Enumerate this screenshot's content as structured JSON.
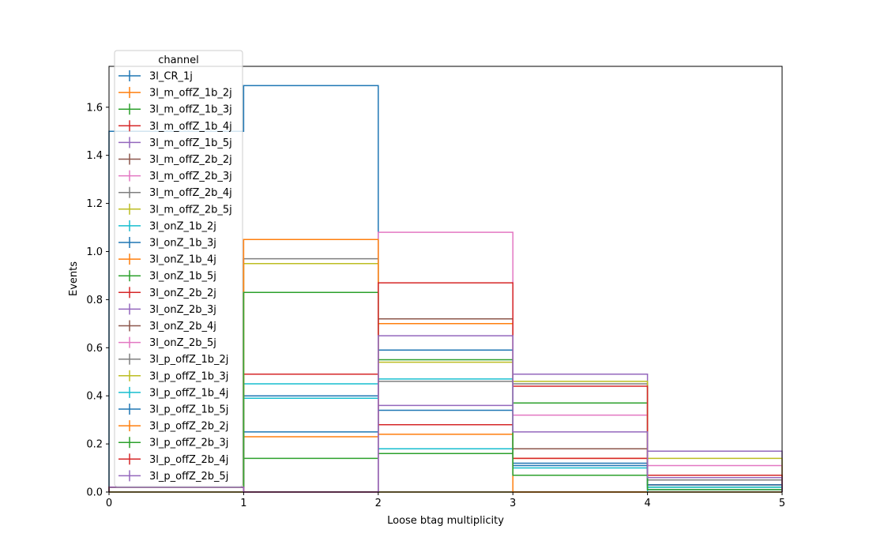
{
  "chart_data": {
    "type": "histogram",
    "xlabel": "Loose btag multiplicity",
    "ylabel": "Events",
    "xlim": [
      0,
      5
    ],
    "ylim": [
      0,
      1.77
    ],
    "bin_edges": [
      0,
      1,
      2,
      3,
      4,
      5
    ],
    "x_ticks": [
      0,
      1,
      2,
      3,
      4,
      5
    ],
    "y_ticks": [
      0.0,
      0.2,
      0.4,
      0.6,
      0.8,
      1.0,
      1.2,
      1.4,
      1.6
    ],
    "x_tick_labels": [
      "0",
      "1",
      "2",
      "3",
      "4",
      "5"
    ],
    "y_tick_labels": [
      "0.0",
      "0.2",
      "0.4",
      "0.6",
      "0.8",
      "1.0",
      "1.2",
      "1.4",
      "1.6"
    ],
    "grid": false,
    "legend": {
      "title": "channel",
      "placement": "upper-left"
    },
    "series": [
      {
        "name": "3l_CR_1j",
        "color": "#1f77b4",
        "values": [
          1.5,
          1.69,
          0.0,
          0.0,
          0.0
        ]
      },
      {
        "name": "3l_m_offZ_1b_2j",
        "color": "#ff7f0e",
        "values": [
          0.0,
          0.0,
          0.0,
          0.0,
          0.0
        ]
      },
      {
        "name": "3l_m_offZ_1b_3j",
        "color": "#2ca02c",
        "values": [
          0.0,
          0.0,
          0.0,
          0.0,
          0.0
        ]
      },
      {
        "name": "3l_m_offZ_1b_4j",
        "color": "#d62728",
        "values": [
          0.0,
          0.0,
          0.0,
          0.0,
          0.0
        ]
      },
      {
        "name": "3l_m_offZ_1b_5j",
        "color": "#9467bd",
        "values": [
          0.0,
          0.0,
          0.0,
          0.0,
          0.0
        ]
      },
      {
        "name": "3l_m_offZ_2b_2j",
        "color": "#8c564b",
        "values": [
          0.0,
          0.0,
          0.0,
          0.0,
          0.0
        ]
      },
      {
        "name": "3l_m_offZ_2b_3j",
        "color": "#e377c2",
        "values": [
          0.0,
          0.0,
          0.0,
          0.0,
          0.0
        ]
      },
      {
        "name": "3l_m_offZ_2b_4j",
        "color": "#7f7f7f",
        "values": [
          0.0,
          0.0,
          0.0,
          0.0,
          0.0
        ]
      },
      {
        "name": "3l_m_offZ_2b_5j",
        "color": "#bcbd22",
        "values": [
          0.0,
          0.0,
          0.0,
          0.0,
          0.0
        ]
      },
      {
        "name": "3l_onZ_1b_2j",
        "color": "#17becf",
        "values": [
          0.02,
          0.45,
          0.18,
          0.07,
          0.0
        ]
      },
      {
        "name": "3l_onZ_1b_3j",
        "color": "#1f77b4",
        "values": [
          0.02,
          0.4,
          0.59,
          0.12,
          0.01
        ]
      },
      {
        "name": "3l_onZ_1b_4j",
        "color": "#ff7f0e",
        "values": [
          0.02,
          0.23,
          0.7,
          0.14,
          0.03
        ]
      },
      {
        "name": "3l_onZ_1b_5j",
        "color": "#2ca02c",
        "values": [
          0.02,
          0.14,
          0.16,
          0.37,
          0.02
        ]
      },
      {
        "name": "3l_onZ_2b_2j",
        "color": "#d62728",
        "values": [
          0.02,
          0.49,
          0.28,
          0.14,
          0.03
        ]
      },
      {
        "name": "3l_onZ_2b_3j",
        "color": "#9467bd",
        "values": [
          0.02,
          0.0,
          0.36,
          0.49,
          0.17
        ]
      },
      {
        "name": "3l_onZ_2b_4j",
        "color": "#8c564b",
        "values": [
          0.02,
          0.0,
          0.72,
          0.18,
          0.03
        ]
      },
      {
        "name": "3l_onZ_2b_5j",
        "color": "#e377c2",
        "values": [
          0.02,
          0.0,
          1.08,
          0.32,
          0.11
        ]
      },
      {
        "name": "3l_p_offZ_1b_2j",
        "color": "#7f7f7f",
        "values": [
          0.02,
          0.97,
          0.46,
          0.45,
          0.05
        ]
      },
      {
        "name": "3l_p_offZ_1b_3j",
        "color": "#bcbd22",
        "values": [
          0.02,
          0.95,
          0.54,
          0.46,
          0.14
        ]
      },
      {
        "name": "3l_p_offZ_1b_4j",
        "color": "#17becf",
        "values": [
          0.02,
          0.39,
          0.47,
          0.1,
          0.02
        ]
      },
      {
        "name": "3l_p_offZ_1b_5j",
        "color": "#1f77b4",
        "values": [
          0.02,
          0.25,
          0.34,
          0.11,
          0.03
        ]
      },
      {
        "name": "3l_p_offZ_2b_2j",
        "color": "#ff7f0e",
        "values": [
          0.02,
          1.05,
          0.24,
          0.0,
          0.0
        ]
      },
      {
        "name": "3l_p_offZ_2b_3j",
        "color": "#2ca02c",
        "values": [
          0.02,
          0.83,
          0.55,
          0.07,
          0.01
        ]
      },
      {
        "name": "3l_p_offZ_2b_4j",
        "color": "#d62728",
        "values": [
          0.02,
          0.0,
          0.87,
          0.44,
          0.07
        ]
      },
      {
        "name": "3l_p_offZ_2b_5j",
        "color": "#9467bd",
        "values": [
          0.02,
          0.0,
          0.65,
          0.25,
          0.06
        ]
      }
    ]
  }
}
